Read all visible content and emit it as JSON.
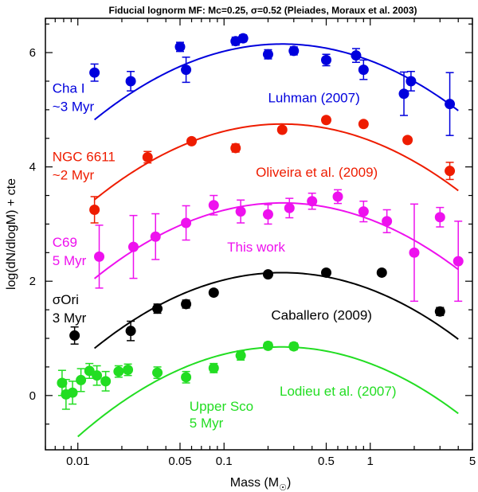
{
  "chart_data": {
    "type": "scatter",
    "title": "Fiducial lognorm MF: Mc=0.25, σ=0.52 (Pleiades, Moraux et al. 2003)",
    "xlabel": "Mass (M",
    "xlabel_suffix": ")",
    "ylabel": "log(dN/dlogM) + cte",
    "x_scale": "log",
    "xlim": [
      0.006,
      5.0
    ],
    "ylim": [
      -0.95,
      6.6
    ],
    "x_ticks": [
      {
        "value": 0.01,
        "label": "0.01"
      },
      {
        "value": 0.05,
        "label": "0.05"
      },
      {
        "value": 0.1,
        "label": "0.1"
      },
      {
        "value": 0.5,
        "label": "0.5"
      },
      {
        "value": 1,
        "label": "1"
      },
      {
        "value": 5,
        "label": "5"
      }
    ],
    "y_ticks": [
      {
        "value": 0,
        "label": "0"
      },
      {
        "value": 2,
        "label": "2"
      },
      {
        "value": 4,
        "label": "4"
      },
      {
        "value": 6,
        "label": "6"
      }
    ],
    "model": {
      "mc": 0.25,
      "sigma": 0.52
    },
    "series": [
      {
        "color": "#0000dd",
        "labels": [
          {
            "text": "Cha I",
            "xm": 0.0067,
            "y": 5.3
          },
          {
            "text": "~3 Myr",
            "xm": 0.0067,
            "y": 4.98
          },
          {
            "text": "Luhman (2007)",
            "xm": 0.2,
            "y": 5.13
          }
        ],
        "curve": {
          "peak": 6.15,
          "xmin": 0.013,
          "xmax": 4.0
        },
        "points": [
          {
            "x": 0.013,
            "y": 5.65,
            "err": 0.15
          },
          {
            "x": 0.023,
            "y": 5.5,
            "err": 0.17
          },
          {
            "x": 0.05,
            "y": 6.1,
            "err": 0.08
          },
          {
            "x": 0.055,
            "y": 5.7,
            "err": 0.22
          },
          {
            "x": 0.12,
            "y": 6.2,
            "err": 0.07
          },
          {
            "x": 0.135,
            "y": 6.25,
            "err": 0.06
          },
          {
            "x": 0.2,
            "y": 5.97,
            "err": 0.08
          },
          {
            "x": 0.3,
            "y": 6.03,
            "err": 0.07
          },
          {
            "x": 0.5,
            "y": 5.87,
            "err": 0.1
          },
          {
            "x": 0.8,
            "y": 5.95,
            "err": 0.12
          },
          {
            "x": 0.9,
            "y": 5.7,
            "err": 0.17
          },
          {
            "x": 1.7,
            "y": 5.28,
            "err": 0.38
          },
          {
            "x": 1.9,
            "y": 5.5,
            "err": 0.17
          },
          {
            "x": 3.5,
            "y": 5.1,
            "err": 0.55
          }
        ]
      },
      {
        "color": "#ee1c00",
        "labels": [
          {
            "text": "NGC 6611",
            "xm": 0.0067,
            "y": 4.1
          },
          {
            "text": "~2 Myr",
            "xm": 0.0067,
            "y": 3.78
          },
          {
            "text": "Oliveira et al. (2009)",
            "xm": 0.165,
            "y": 3.83
          }
        ],
        "curve": {
          "peak": 4.75,
          "xmin": 0.013,
          "xmax": 4.0
        },
        "points": [
          {
            "x": 0.013,
            "y": 3.25,
            "err": 0.23
          },
          {
            "x": 0.03,
            "y": 4.17,
            "err": 0.1
          },
          {
            "x": 0.06,
            "y": 4.45,
            "err": 0.05
          },
          {
            "x": 0.12,
            "y": 4.33,
            "err": 0.07
          },
          {
            "x": 0.25,
            "y": 4.65,
            "err": 0.05
          },
          {
            "x": 0.5,
            "y": 4.82,
            "err": 0.05
          },
          {
            "x": 0.9,
            "y": 4.75,
            "err": 0.05
          },
          {
            "x": 1.8,
            "y": 4.47,
            "err": 0.05
          },
          {
            "x": 3.5,
            "y": 3.93,
            "err": 0.15
          }
        ]
      },
      {
        "color": "#ee11ee",
        "labels": [
          {
            "text": "C69",
            "xm": 0.0067,
            "y": 2.6
          },
          {
            "text": "5 Myr",
            "xm": 0.0067,
            "y": 2.28
          },
          {
            "text": "This work",
            "xm": 0.105,
            "y": 2.52
          }
        ],
        "curve": {
          "peak": 3.37,
          "xmin": 0.013,
          "xmax": 4.0
        },
        "points": [
          {
            "x": 0.014,
            "y": 2.43,
            "err": 0.55
          },
          {
            "x": 0.024,
            "y": 2.6,
            "err": 0.55
          },
          {
            "x": 0.034,
            "y": 2.78,
            "err": 0.4
          },
          {
            "x": 0.055,
            "y": 3.02,
            "err": 0.3
          },
          {
            "x": 0.085,
            "y": 3.33,
            "err": 0.17
          },
          {
            "x": 0.13,
            "y": 3.22,
            "err": 0.2
          },
          {
            "x": 0.2,
            "y": 3.17,
            "err": 0.17
          },
          {
            "x": 0.28,
            "y": 3.28,
            "err": 0.17
          },
          {
            "x": 0.4,
            "y": 3.4,
            "err": 0.14
          },
          {
            "x": 0.6,
            "y": 3.48,
            "err": 0.12
          },
          {
            "x": 0.9,
            "y": 3.22,
            "err": 0.18
          },
          {
            "x": 1.3,
            "y": 3.05,
            "err": 0.2
          },
          {
            "x": 2.0,
            "y": 2.5,
            "err": 0.85
          },
          {
            "x": 3.0,
            "y": 3.12,
            "err": 0.17
          },
          {
            "x": 4.0,
            "y": 2.35,
            "err": 0.7
          }
        ]
      },
      {
        "color": "#000000",
        "labels": [
          {
            "text": "σOri",
            "xm": 0.0067,
            "y": 1.6
          },
          {
            "text": "3 Myr",
            "xm": 0.0067,
            "y": 1.28
          },
          {
            "text": "Caballero (2009)",
            "xm": 0.21,
            "y": 1.33
          }
        ],
        "curve": {
          "peak": 2.15,
          "xmin": 0.013,
          "xmax": 4.0
        },
        "points": [
          {
            "x": 0.0095,
            "y": 1.05,
            "err": 0.15
          },
          {
            "x": 0.023,
            "y": 1.13,
            "err": 0.17
          },
          {
            "x": 0.035,
            "y": 1.52,
            "err": 0.08
          },
          {
            "x": 0.055,
            "y": 1.6,
            "err": 0.07
          },
          {
            "x": 0.085,
            "y": 1.8,
            "err": 0.05
          },
          {
            "x": 0.2,
            "y": 2.12,
            "err": 0.03
          },
          {
            "x": 0.5,
            "y": 2.15,
            "err": 0.04
          },
          {
            "x": 1.2,
            "y": 2.15,
            "err": 0.04
          },
          {
            "x": 3.0,
            "y": 1.47,
            "err": 0.07
          }
        ]
      },
      {
        "color": "#22dd22",
        "labels": [
          {
            "text": "Lodieu et al. (2007)",
            "xm": 0.24,
            "y": 0.0
          },
          {
            "text": "Upper Sco",
            "xm": 0.058,
            "y": -0.27
          },
          {
            "text": "5 Myr",
            "xm": 0.058,
            "y": -0.56
          }
        ],
        "curve": {
          "peak": 0.85,
          "xmin": 0.01,
          "xmax": 4.0
        },
        "points": [
          {
            "x": 0.0078,
            "y": 0.22,
            "err": 0.22
          },
          {
            "x": 0.0083,
            "y": 0.02,
            "err": 0.26
          },
          {
            "x": 0.0092,
            "y": 0.05,
            "err": 0.2
          },
          {
            "x": 0.0105,
            "y": 0.27,
            "err": 0.2
          },
          {
            "x": 0.012,
            "y": 0.43,
            "err": 0.13
          },
          {
            "x": 0.0135,
            "y": 0.35,
            "err": 0.17
          },
          {
            "x": 0.0155,
            "y": 0.25,
            "err": 0.17
          },
          {
            "x": 0.019,
            "y": 0.42,
            "err": 0.1
          },
          {
            "x": 0.022,
            "y": 0.45,
            "err": 0.1
          },
          {
            "x": 0.035,
            "y": 0.4,
            "err": 0.1
          },
          {
            "x": 0.055,
            "y": 0.32,
            "err": 0.1
          },
          {
            "x": 0.085,
            "y": 0.48,
            "err": 0.08
          },
          {
            "x": 0.13,
            "y": 0.7,
            "err": 0.08
          },
          {
            "x": 0.2,
            "y": 0.87,
            "err": 0.06
          },
          {
            "x": 0.3,
            "y": 0.86,
            "err": 0.06
          }
        ]
      }
    ]
  }
}
